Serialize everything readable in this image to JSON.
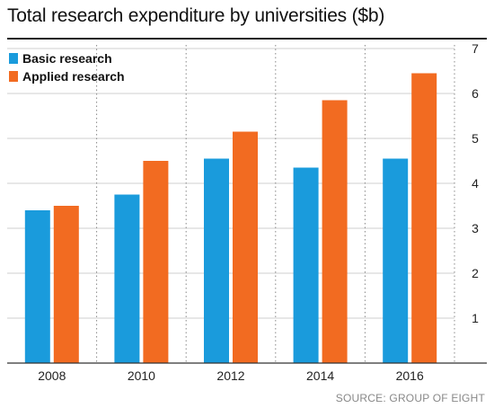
{
  "chart_data": {
    "type": "bar",
    "title": "Total research expenditure by universities ($b)",
    "categories": [
      "2008",
      "2010",
      "2012",
      "2014",
      "2016"
    ],
    "series": [
      {
        "name": "Basic research",
        "values": [
          3.4,
          3.75,
          4.55,
          4.35,
          4.55
        ],
        "color": "#1a9bdc"
      },
      {
        "name": "Applied research",
        "values": [
          3.5,
          4.5,
          5.15,
          5.85,
          6.45
        ],
        "color": "#f26b21"
      }
    ],
    "ylim": [
      0,
      7
    ],
    "y_ticks": [
      "1",
      "2",
      "3",
      "4",
      "5",
      "6",
      "7"
    ],
    "y_axis_position": "right",
    "grid": true,
    "legend_position": "top-left",
    "source": "SOURCE: GROUP OF EIGHT"
  }
}
